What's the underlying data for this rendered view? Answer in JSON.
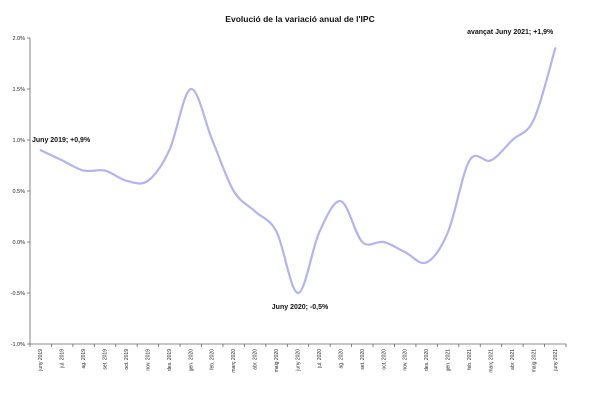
{
  "chart_data": {
    "type": "line",
    "title": "Evolució de la variació anual de l'IPC",
    "xlabel": "",
    "ylabel": "",
    "ylim": [
      -1.0,
      2.0
    ],
    "grid": false,
    "legend": "none",
    "line_color": "#b3b3f2",
    "y_ticks": [
      2.0,
      1.5,
      1.0,
      0.5,
      0.0,
      -0.5,
      -1.0
    ],
    "y_tick_labels": [
      "2.0%",
      "1.5%",
      "1.0%",
      "0.5%",
      "0.0%",
      "-0.5%",
      "-1.0%"
    ],
    "categories": [
      "juny 2019",
      "jul. 2019",
      "ag. 2019",
      "set. 2019",
      "oct. 2019",
      "nov. 2019",
      "des. 2019",
      "gen. 2020",
      "feb. 2020",
      "març 2020",
      "abr. 2020",
      "maig 2020",
      "juny 2020",
      "jul. 2020",
      "ag. 2020",
      "set. 2020",
      "oct. 2020",
      "nov. 2020",
      "des. 2020",
      "gen. 2021",
      "feb. 2021",
      "març 2021",
      "abr. 2021",
      "maig 2021",
      "juny 2021"
    ],
    "series": [
      {
        "values": [
          0.9,
          0.8,
          0.7,
          0.7,
          0.6,
          0.6,
          0.9,
          1.5,
          1.0,
          0.5,
          0.3,
          0.1,
          -0.5,
          0.1,
          0.4,
          0.0,
          0.0,
          -0.1,
          -0.2,
          0.1,
          0.8,
          0.8,
          1.0,
          1.2,
          1.9
        ]
      }
    ],
    "annotations": [
      {
        "text": "Juny 2019; +0,9%",
        "category": "juny 2019",
        "value": 0.9
      },
      {
        "text": "Juny 2020;  -0,5%",
        "category": "juny 2020",
        "value": -0.5
      },
      {
        "text": "avançat Juny 2021; +1,9%",
        "category": "juny 2021",
        "value": 1.9
      }
    ]
  }
}
